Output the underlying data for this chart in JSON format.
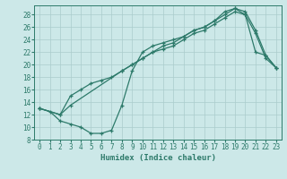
{
  "xlabel": "Humidex (Indice chaleur)",
  "background_color": "#cce8e8",
  "grid_color": "#aacccc",
  "line_color": "#2d7a6a",
  "xlim": [
    -0.5,
    23.5
  ],
  "ylim": [
    8,
    29.5
  ],
  "yticks": [
    8,
    10,
    12,
    14,
    16,
    18,
    20,
    22,
    24,
    26,
    28
  ],
  "xticks": [
    0,
    1,
    2,
    3,
    4,
    5,
    6,
    7,
    8,
    9,
    10,
    11,
    12,
    13,
    14,
    15,
    16,
    17,
    18,
    19,
    20,
    21,
    22,
    23
  ],
  "line1_x": [
    0,
    1,
    2,
    3,
    4,
    5,
    6,
    7,
    8,
    9,
    10,
    11,
    12,
    13,
    14,
    15,
    16,
    17,
    18,
    19,
    20,
    21,
    22,
    23
  ],
  "line1_y": [
    13,
    12.5,
    11,
    10.5,
    10,
    9,
    9,
    9.5,
    13.5,
    19,
    22,
    23,
    23.5,
    24,
    24.5,
    25.5,
    26,
    27,
    28,
    29,
    28,
    22,
    21.5,
    19.5
  ],
  "line2_x": [
    0,
    2,
    3,
    4,
    5,
    6,
    7,
    8,
    9,
    10,
    11,
    12,
    13,
    14,
    15,
    16,
    17,
    18,
    19,
    20,
    21,
    22,
    23
  ],
  "line2_y": [
    13,
    12,
    15,
    16,
    17,
    17.5,
    18,
    19,
    20,
    21,
    22,
    23,
    23.5,
    24.5,
    25.5,
    26,
    27,
    28.5,
    29,
    28.5,
    25.5,
    21.5,
    19.5
  ],
  "line3_x": [
    0,
    2,
    3,
    8,
    9,
    10,
    11,
    12,
    13,
    14,
    15,
    16,
    17,
    18,
    19,
    20,
    21,
    22,
    23
  ],
  "line3_y": [
    13,
    12,
    13.5,
    19,
    20,
    21,
    22,
    22.5,
    23,
    24,
    25,
    25.5,
    26.5,
    27.5,
    28.5,
    28,
    25,
    21,
    19.5
  ]
}
